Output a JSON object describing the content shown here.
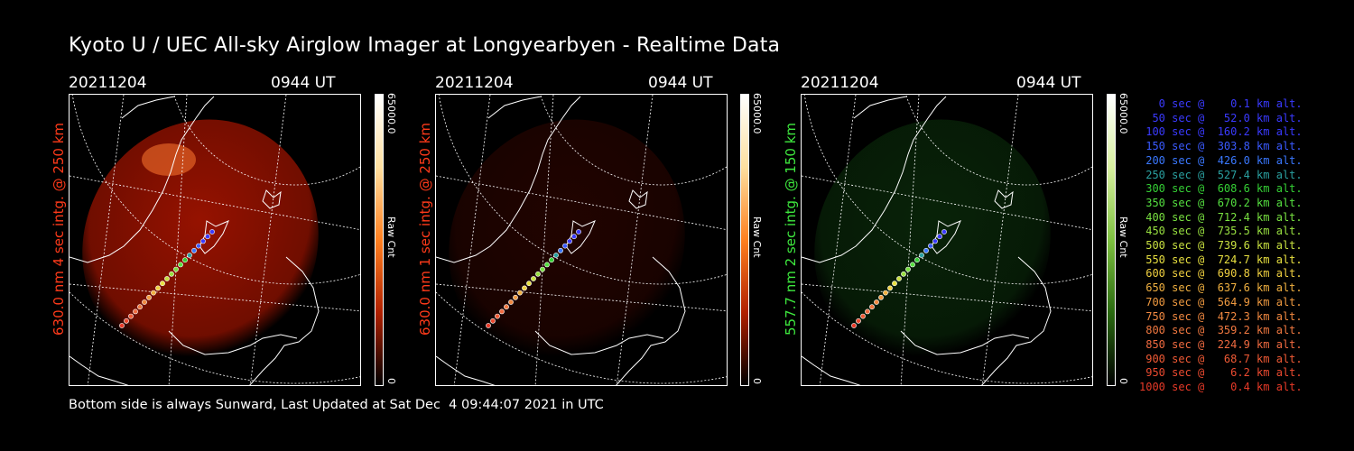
{
  "title": "Kyoto U / UEC All-sky Airglow Imager at Longyearbyen - Realtime Data",
  "footer": "Bottom side is always Sunward, Last Updated at Sat Dec  4 09:44:07 2021 in UTC",
  "colorbar": {
    "max": "65000.0",
    "min": "0",
    "unit": "Raw Cnt"
  },
  "panels": [
    {
      "date": "20211204",
      "time": "0944 UT",
      "label": "630.0 nm 4 sec intg. @ 250 km",
      "label_color": "#ff3a1a",
      "tint": "#b01500",
      "brightness": 0.85,
      "colorbar": "red"
    },
    {
      "date": "20211204",
      "time": "0944 UT",
      "label": "630.0 nm 1 sec intg. @ 250 km",
      "label_color": "#ff3a1a",
      "tint": "#4a0800",
      "brightness": 0.45,
      "colorbar": "red"
    },
    {
      "date": "20211204",
      "time": "0944 UT",
      "label": "557.7 nm 2 sec intg. @ 150 km",
      "label_color": "#3ee83e",
      "tint": "#0e3a0e",
      "brightness": 0.6,
      "colorbar": "green"
    }
  ],
  "legend": [
    {
      "text": "   0 sec @    0.1 km alt.",
      "color": "#3a3aff"
    },
    {
      "text": "  50 sec @   52.0 km alt.",
      "color": "#3a3aff"
    },
    {
      "text": " 100 sec @  160.2 km alt.",
      "color": "#3a3aff"
    },
    {
      "text": " 150 sec @  303.8 km alt.",
      "color": "#3a5aff"
    },
    {
      "text": " 200 sec @  426.0 km alt.",
      "color": "#3a78ff"
    },
    {
      "text": " 250 sec @  527.4 km alt.",
      "color": "#2aa0a0"
    },
    {
      "text": " 300 sec @  608.6 km alt.",
      "color": "#35d035"
    },
    {
      "text": " 350 sec @  670.2 km alt.",
      "color": "#55e040"
    },
    {
      "text": " 400 sec @  712.4 km alt.",
      "color": "#78e040"
    },
    {
      "text": " 450 sec @  735.5 km alt.",
      "color": "#98e040"
    },
    {
      "text": " 500 sec @  739.6 km alt.",
      "color": "#c8e040"
    },
    {
      "text": " 550 sec @  724.7 km alt.",
      "color": "#e8e040"
    },
    {
      "text": " 600 sec @  690.8 km alt.",
      "color": "#f0d040"
    },
    {
      "text": " 650 sec @  637.6 km alt.",
      "color": "#f0b040"
    },
    {
      "text": " 700 sec @  564.9 km alt.",
      "color": "#f09a40"
    },
    {
      "text": " 750 sec @  472.3 km alt.",
      "color": "#f08840"
    },
    {
      "text": " 800 sec @  359.2 km alt.",
      "color": "#f07840"
    },
    {
      "text": " 850 sec @  224.9 km alt.",
      "color": "#f06a40"
    },
    {
      "text": " 900 sec @   68.7 km alt.",
      "color": "#f05a35"
    },
    {
      "text": " 950 sec @    6.2 km alt.",
      "color": "#ec4a30"
    },
    {
      "text": "1000 sec @    0.4 km alt.",
      "color": "#e83a28"
    }
  ]
}
